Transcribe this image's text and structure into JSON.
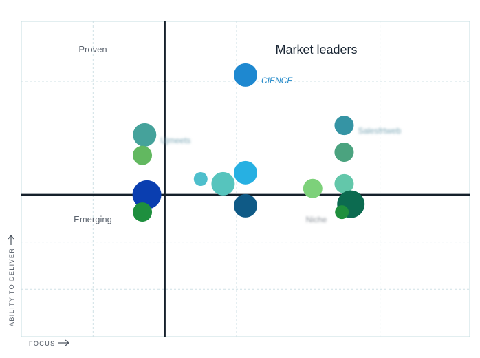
{
  "chart_data": {
    "type": "scatter",
    "xlabel": "FOCUS",
    "ylabel": "ABILITY TO DELIVER",
    "xlim": [
      0,
      10
    ],
    "ylim": [
      0,
      10
    ],
    "x_divider": 3.2,
    "y_divider": 4.5,
    "grid": true,
    "quadrants": {
      "top_left": "Proven",
      "top_right": "Market leaders",
      "bottom_left": "Emerging",
      "bottom_right": "Niche"
    },
    "points": [
      {
        "x": 5.0,
        "y": 8.3,
        "size": 17,
        "color": "#1e88d0",
        "label": "CIENCE",
        "label_visible": true
      },
      {
        "x": 2.75,
        "y": 6.4,
        "size": 17,
        "color": "#45a29b",
        "label": "Ujmeets",
        "label_visible": false
      },
      {
        "x": 2.7,
        "y": 5.75,
        "size": 14,
        "color": "#62b860",
        "label": ""
      },
      {
        "x": 2.8,
        "y": 4.5,
        "size": 21,
        "color": "#0a3eb0",
        "label": ""
      },
      {
        "x": 2.7,
        "y": 3.95,
        "size": 14,
        "color": "#1e8f3e",
        "label": ""
      },
      {
        "x": 4.0,
        "y": 5.0,
        "size": 10,
        "color": "#4ebfcc",
        "label": ""
      },
      {
        "x": 4.5,
        "y": 4.85,
        "size": 17,
        "color": "#56c4bd",
        "label": ""
      },
      {
        "x": 5.0,
        "y": 5.2,
        "size": 17,
        "color": "#27b0e2",
        "label": ""
      },
      {
        "x": 5.0,
        "y": 4.15,
        "size": 17,
        "color": "#0f5a86",
        "label": ""
      },
      {
        "x": 7.2,
        "y": 6.7,
        "size": 14,
        "color": "#3594a4",
        "label": "Salesfrtweb",
        "label_visible": false
      },
      {
        "x": 7.2,
        "y": 5.85,
        "size": 14,
        "color": "#4ba37f",
        "label": ""
      },
      {
        "x": 7.2,
        "y": 4.85,
        "size": 14,
        "color": "#63c7aa",
        "label": ""
      },
      {
        "x": 6.5,
        "y": 4.7,
        "size": 14,
        "color": "#7dd17a",
        "label": ""
      },
      {
        "x": 7.35,
        "y": 4.2,
        "size": 20,
        "color": "#0c6b50",
        "label": ""
      },
      {
        "x": 7.15,
        "y": 3.95,
        "size": 10,
        "color": "#1f8f3c",
        "label": ""
      }
    ]
  }
}
